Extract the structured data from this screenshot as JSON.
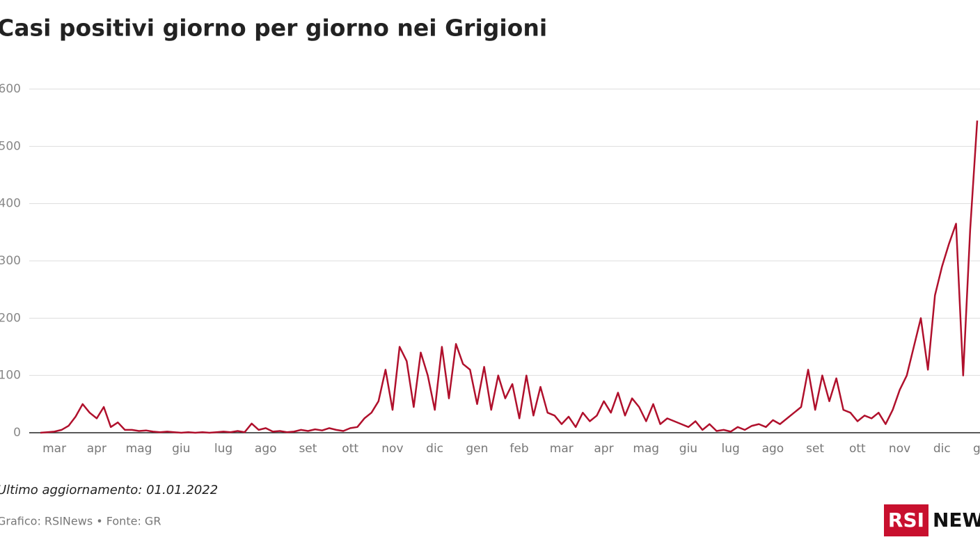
{
  "chart_data": {
    "type": "line",
    "title": "Casi positivi giorno per giorno nei Grigioni",
    "categories": [
      null,
      "mar",
      null,
      null,
      null,
      null,
      null,
      "apr",
      null,
      null,
      null,
      null,
      null,
      "mag",
      null,
      null,
      null,
      null,
      null,
      "giu",
      null,
      null,
      null,
      null,
      null,
      "lug",
      null,
      null,
      null,
      null,
      null,
      "ago",
      null,
      null,
      null,
      null,
      null,
      "set",
      null,
      null,
      null,
      null,
      null,
      "ott",
      null,
      null,
      null,
      null,
      null,
      "nov",
      null,
      null,
      null,
      null,
      null,
      "dic",
      null,
      null,
      null,
      null,
      null,
      "gen",
      null,
      null,
      null,
      null,
      null,
      "feb",
      null,
      null,
      null,
      null,
      null,
      "mar",
      null,
      null,
      null,
      null,
      null,
      "apr",
      null,
      null,
      null,
      null,
      null,
      "mag",
      null,
      null,
      null,
      null,
      null,
      "giu",
      null,
      null,
      null,
      null,
      null,
      "lug",
      null,
      null,
      null,
      null,
      null,
      "ago",
      null,
      null,
      null,
      null,
      null,
      "set",
      null,
      null,
      null,
      null,
      null,
      "ott",
      null,
      null,
      null,
      null,
      null,
      "nov",
      null,
      null,
      null,
      null,
      null,
      "dic",
      null,
      null,
      null,
      null,
      null,
      "gen"
    ],
    "series": [
      {
        "name": "Casi positivi",
        "color": "#b0102c",
        "values": [
          0,
          1,
          2,
          5,
          12,
          28,
          50,
          35,
          25,
          45,
          10,
          18,
          5,
          5,
          3,
          4,
          2,
          1,
          2,
          1,
          0,
          1,
          0,
          1,
          0,
          1,
          2,
          1,
          3,
          1,
          16,
          5,
          8,
          2,
          3,
          1,
          2,
          5,
          3,
          6,
          4,
          8,
          5,
          3,
          8,
          10,
          25,
          35,
          55,
          110,
          40,
          150,
          125,
          45,
          140,
          100,
          40,
          150,
          60,
          155,
          120,
          110,
          50,
          115,
          40,
          100,
          60,
          85,
          25,
          100,
          30,
          80,
          35,
          30,
          15,
          28,
          10,
          35,
          20,
          30,
          55,
          35,
          70,
          30,
          60,
          45,
          20,
          50,
          15,
          25,
          20,
          15,
          10,
          20,
          5,
          15,
          3,
          5,
          2,
          10,
          5,
          12,
          15,
          10,
          22,
          15,
          25,
          35,
          45,
          110,
          40,
          100,
          55,
          95,
          40,
          35,
          20,
          30,
          25,
          35,
          15,
          40,
          75,
          100,
          150,
          200,
          110,
          240,
          290,
          330,
          365,
          100,
          355,
          545
        ]
      }
    ],
    "ylim": [
      0,
      650
    ],
    "yticks": [
      0,
      100,
      200,
      300,
      400,
      500,
      600
    ],
    "grid": true,
    "note": "Ultimo aggiornamento: 01.01.2022",
    "source": "Grafico: RSINews • Fonte: GR",
    "logo": [
      "RSI",
      "NEWS"
    ]
  }
}
